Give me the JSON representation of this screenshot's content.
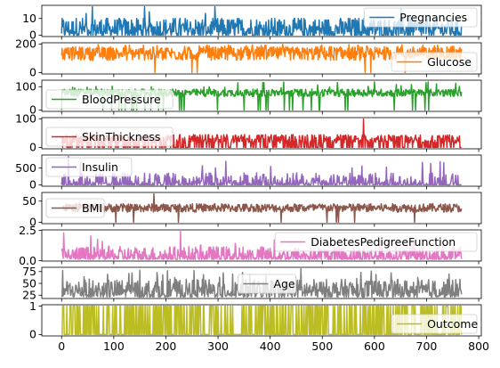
{
  "chart_data": {
    "type": "line",
    "title": "",
    "xlabel": "",
    "xlim": [
      -38,
      805
    ],
    "x_ticks": [
      "0",
      "100",
      "200",
      "300",
      "400",
      "500",
      "600",
      "700",
      "800"
    ],
    "n_points": 768,
    "subplots": [
      {
        "name": "Pregnancies",
        "color": "#1f77b4",
        "ylim": [
          -0.85,
          17.85
        ],
        "y_ticks": [
          "0",
          "10"
        ],
        "legend": "upper-right",
        "stats": {
          "min": 0,
          "max": 17,
          "typical_low": 0,
          "typical_high": 10
        }
      },
      {
        "name": "Glucose",
        "color": "#ff7f0e",
        "ylim": [
          -10,
          209
        ],
        "y_ticks": [
          "0",
          "200"
        ],
        "legend": "lower-right",
        "stats": {
          "min": 0,
          "max": 199,
          "typical_low": 80,
          "typical_high": 180
        }
      },
      {
        "name": "BloodPressure",
        "color": "#2ca02c",
        "ylim": [
          -6,
          128
        ],
        "y_ticks": [
          "0",
          "100"
        ],
        "legend": "lower-left",
        "stats": {
          "min": 0,
          "max": 122,
          "typical_low": 55,
          "typical_high": 90
        }
      },
      {
        "name": "SkinThickness",
        "color": "#d62728",
        "ylim": [
          -5,
          104
        ],
        "y_ticks": [
          "0",
          "100"
        ],
        "legend": "lower-left",
        "stats": {
          "min": 0,
          "max": 99,
          "typical_low": 0,
          "typical_high": 45
        }
      },
      {
        "name": "Insulin",
        "color": "#9467bd",
        "ylim": [
          -42,
          888
        ],
        "y_ticks": [
          "0",
          "500"
        ],
        "legend": "upper-left",
        "stats": {
          "min": 0,
          "max": 846,
          "typical_low": 0,
          "typical_high": 300
        }
      },
      {
        "name": "BMI",
        "color": "#8c564b",
        "ylim": [
          -3.4,
          70.5
        ],
        "y_ticks": [
          "0",
          "50"
        ],
        "legend": "center-left",
        "stats": {
          "min": 0,
          "max": 67.1,
          "typical_low": 22,
          "typical_high": 45
        }
      },
      {
        "name": "DiabetesPedigreeFunction",
        "color": "#e377c2",
        "ylim": [
          -0.04,
          2.54
        ],
        "y_ticks": [
          "0.0",
          "2.5"
        ],
        "legend": "upper-right",
        "stats": {
          "min": 0.078,
          "max": 2.42,
          "typical_low": 0.1,
          "typical_high": 1.0
        }
      },
      {
        "name": "Age",
        "color": "#7f7f7f",
        "ylim": [
          18,
          84
        ],
        "y_ticks": [
          "25",
          "50",
          "75"
        ],
        "legend": "center",
        "stats": {
          "min": 21,
          "max": 81,
          "typical_low": 21,
          "typical_high": 60
        }
      },
      {
        "name": "Outcome",
        "color": "#bcbd22",
        "ylim": [
          -0.05,
          1.05
        ],
        "y_ticks": [
          "0",
          "1"
        ],
        "legend": "lower-right",
        "stats": {
          "min": 0,
          "max": 1,
          "typical_low": 0,
          "typical_high": 1
        }
      }
    ]
  }
}
